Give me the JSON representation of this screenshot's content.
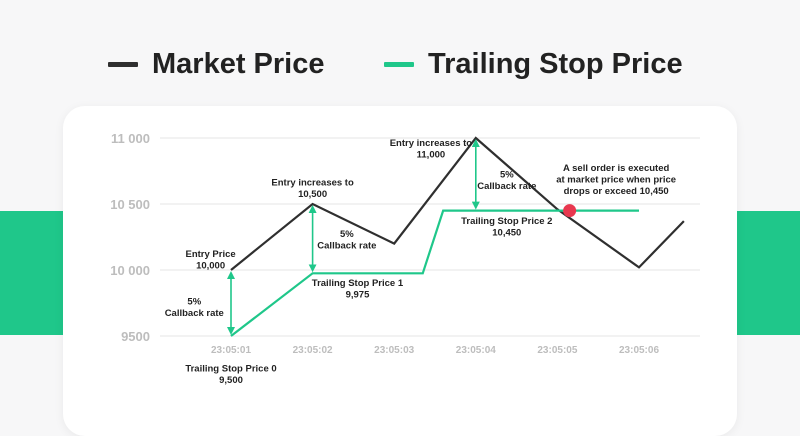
{
  "colors": {
    "market": "#2f2f2f",
    "trailing": "#1fc78a",
    "marker": "#e8384f",
    "band": "#1fc78a"
  },
  "chart_data": {
    "type": "line",
    "legend_position": "top",
    "legend": [
      "Market Price",
      "Trailing Stop Price"
    ],
    "x_ticks": [
      "23:05:01",
      "23:05:02",
      "23:05:03",
      "23:05:04",
      "23:05:05",
      "23:05:06"
    ],
    "y_ticks": [
      {
        "value": 9500,
        "label": "9500"
      },
      {
        "value": 10000,
        "label": "10 000"
      },
      {
        "value": 10500,
        "label": "10 500"
      },
      {
        "value": 11000,
        "label": "11 000"
      }
    ],
    "ylim": [
      9500,
      11000
    ],
    "grid": "horizontal",
    "series": [
      {
        "name": "Market Price",
        "color": "#2f2f2f",
        "points": [
          [
            1,
            10000
          ],
          [
            2,
            10500
          ],
          [
            3,
            10200
          ],
          [
            4,
            11000
          ],
          [
            5,
            10460
          ],
          [
            6,
            10020
          ],
          [
            6.55,
            10370
          ]
        ]
      },
      {
        "name": "Trailing Stop Price",
        "color": "#1fc78a",
        "points": [
          [
            1,
            9500
          ],
          [
            2,
            9975
          ],
          [
            3.35,
            9975
          ],
          [
            3.6,
            10450
          ],
          [
            6,
            10450
          ]
        ]
      }
    ],
    "sell_point": {
      "x": 5.15,
      "y": 10450
    },
    "callback_arrows": [
      {
        "x": 1,
        "y_from": 9500,
        "y_to": 10000
      },
      {
        "x": 2,
        "y_from": 9975,
        "y_to": 10500
      },
      {
        "x": 4,
        "y_from": 10450,
        "y_to": 11000
      }
    ],
    "annotations": [
      {
        "lines": [
          "Entry Price",
          "10,000"
        ],
        "x": 0.75,
        "y": 10100,
        "anchor": "middle"
      },
      {
        "lines": [
          "5%",
          "Callback rate"
        ],
        "x": 0.55,
        "y": 9740,
        "anchor": "middle"
      },
      {
        "lines": [
          "Trailing Stop Price 0",
          "9,500"
        ],
        "x": 1,
        "y": 9230,
        "anchor": "middle"
      },
      {
        "lines": [
          "Entry increases to",
          "10,500"
        ],
        "x": 2,
        "y": 10640,
        "anchor": "middle"
      },
      {
        "lines": [
          "5%",
          "Callback rate"
        ],
        "x": 2.42,
        "y": 10250,
        "anchor": "middle"
      },
      {
        "lines": [
          "Trailing Stop Price 1",
          "9,975"
        ],
        "x": 2.55,
        "y": 9880,
        "anchor": "middle"
      },
      {
        "lines": [
          "Entry increases to",
          "11,000"
        ],
        "x": 3.45,
        "y": 10940,
        "anchor": "middle"
      },
      {
        "lines": [
          "5%",
          "Callback rate"
        ],
        "x": 4.38,
        "y": 10700,
        "anchor": "middle"
      },
      {
        "lines": [
          "Trailing Stop Price 2",
          "10,450"
        ],
        "x": 4.38,
        "y": 10350,
        "anchor": "middle"
      },
      {
        "lines": [
          "A sell order is executed",
          "at market price when price",
          "drops or exceed 10,450"
        ],
        "x": 5.72,
        "y": 10750,
        "anchor": "middle"
      }
    ],
    "callback_labels": []
  }
}
